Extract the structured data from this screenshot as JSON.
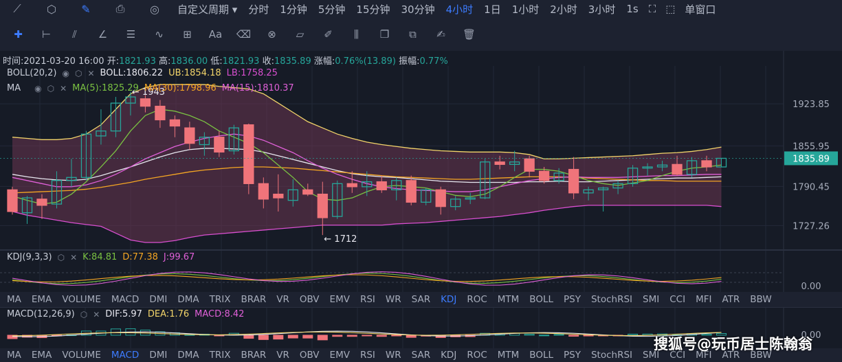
{
  "toolbar": {
    "icons": [
      "line-chart-icon",
      "settings-hex-icon",
      "pen-icon",
      "printer-icon",
      "compass-icon"
    ],
    "periods": [
      "自定义周期",
      "分时",
      "1分钟",
      "5分钟",
      "15分钟",
      "30分钟",
      "4小时",
      "1日",
      "1小时",
      "2小时",
      "3小时",
      "1s"
    ],
    "active_period": "4小时",
    "single_window": "单窗口"
  },
  "drawing_tools": [
    "crosshair-icon",
    "horizontal-line-icon",
    "parallel-lines-icon",
    "angle-icon",
    "fib-lines-icon",
    "wave-icon",
    "add-box-icon",
    "text-icon",
    "eraser-icon",
    "magnet-icon",
    "ruler-icon",
    "brush-icon",
    "candles-icon",
    "copy-icon",
    "duplicate-icon",
    "note-icon",
    "trash-icon"
  ],
  "info": {
    "time_label": "时间:",
    "time": "2021-03-20 16:00",
    "open_label": "开:",
    "open": "1821.93",
    "high_label": "高:",
    "high": "1836.00",
    "low_label": "低:",
    "low": "1821.93",
    "close_label": "收:",
    "close": "1835.89",
    "change_label": "涨幅:",
    "change": "0.76%(13.89)",
    "amp_label": "振幅:",
    "amp": "0.77%"
  },
  "boll_legend": {
    "name": "BOLL(20,2)",
    "boll": "BOLL:1806.22",
    "ub": "UB:1854.18",
    "lb": "LB:1758.25"
  },
  "ma_legend": {
    "name": "MA",
    "ma5": "MA(5):1825.29",
    "ma30": "MA(30):1798.96",
    "ma15": "MA(15):1810.37"
  },
  "kdj_legend": {
    "name": "KDJ(9,3,3)",
    "k": "K:84.81",
    "d": "D:77.38",
    "j": "J:99.67"
  },
  "macd_legend": {
    "name": "MACD(12,26,9)",
    "dif": "DIF:5.97",
    "dea": "DEA:1.76",
    "macd": "MACD:8.42"
  },
  "indicator_tabs": [
    "MA",
    "EMA",
    "VOLUME",
    "MACD",
    "DMI",
    "DMA",
    "TRIX",
    "BRAR",
    "VR",
    "OBV",
    "EMV",
    "RSI",
    "WR",
    "SAR",
    "KDJ",
    "ROC",
    "MTM",
    "BOLL",
    "PSY",
    "StochRSI",
    "SMI",
    "CCI",
    "MFI",
    "ATR",
    "BBW"
  ],
  "indicator_tabs_active_1": "KDJ",
  "indicator_tabs_active_2": "MACD",
  "watermark": "搜狐号@玩币居士陈翰翁",
  "colors": {
    "up": "#26a69a",
    "down": "#f0747a",
    "ub": "#f3d56a",
    "lb": "#d94fd0",
    "mid": "#e8e8f0",
    "ma5": "#7ac142",
    "ma30": "#f5a623",
    "ma15": "#e060d8",
    "accent": "#3d7cff"
  },
  "chart_data": {
    "type": "candlestick",
    "price_axis_ticks": [
      1923.85,
      1855.95,
      1790.45,
      1727.26
    ],
    "current_price": "1835.89",
    "annotations": [
      {
        "text": "← 1943"
      },
      {
        "text": "← 1712"
      }
    ],
    "ylim": [
      1690,
      1985
    ],
    "candles": [
      {
        "o": 1785,
        "h": 1790,
        "l": 1745,
        "c": 1750
      },
      {
        "o": 1748,
        "h": 1775,
        "l": 1730,
        "c": 1772
      },
      {
        "o": 1770,
        "h": 1778,
        "l": 1738,
        "c": 1760
      },
      {
        "o": 1762,
        "h": 1815,
        "l": 1755,
        "c": 1800
      },
      {
        "o": 1800,
        "h": 1835,
        "l": 1790,
        "c": 1805
      },
      {
        "o": 1805,
        "h": 1880,
        "l": 1800,
        "c": 1875
      },
      {
        "o": 1872,
        "h": 1915,
        "l": 1858,
        "c": 1880
      },
      {
        "o": 1880,
        "h": 1935,
        "l": 1870,
        "c": 1925
      },
      {
        "o": 1925,
        "h": 1943,
        "l": 1905,
        "c": 1935
      },
      {
        "o": 1932,
        "h": 1938,
        "l": 1910,
        "c": 1920
      },
      {
        "o": 1920,
        "h": 1930,
        "l": 1885,
        "c": 1898
      },
      {
        "o": 1898,
        "h": 1905,
        "l": 1870,
        "c": 1888
      },
      {
        "o": 1885,
        "h": 1895,
        "l": 1850,
        "c": 1860
      },
      {
        "o": 1858,
        "h": 1878,
        "l": 1840,
        "c": 1870
      },
      {
        "o": 1870,
        "h": 1880,
        "l": 1838,
        "c": 1846
      },
      {
        "o": 1848,
        "h": 1890,
        "l": 1842,
        "c": 1885
      },
      {
        "o": 1890,
        "h": 1892,
        "l": 1778,
        "c": 1795
      },
      {
        "o": 1795,
        "h": 1805,
        "l": 1755,
        "c": 1770
      },
      {
        "o": 1778,
        "h": 1810,
        "l": 1750,
        "c": 1772
      },
      {
        "o": 1768,
        "h": 1802,
        "l": 1758,
        "c": 1785
      },
      {
        "o": 1785,
        "h": 1795,
        "l": 1775,
        "c": 1778
      },
      {
        "o": 1778,
        "h": 1798,
        "l": 1712,
        "c": 1740
      },
      {
        "o": 1742,
        "h": 1800,
        "l": 1738,
        "c": 1795
      },
      {
        "o": 1795,
        "h": 1815,
        "l": 1780,
        "c": 1790
      },
      {
        "o": 1790,
        "h": 1815,
        "l": 1775,
        "c": 1798
      },
      {
        "o": 1798,
        "h": 1808,
        "l": 1780,
        "c": 1785
      },
      {
        "o": 1785,
        "h": 1805,
        "l": 1768,
        "c": 1800
      },
      {
        "o": 1800,
        "h": 1808,
        "l": 1760,
        "c": 1765
      },
      {
        "o": 1765,
        "h": 1788,
        "l": 1760,
        "c": 1785
      },
      {
        "o": 1785,
        "h": 1790,
        "l": 1745,
        "c": 1758
      },
      {
        "o": 1758,
        "h": 1775,
        "l": 1752,
        "c": 1770
      },
      {
        "o": 1770,
        "h": 1780,
        "l": 1762,
        "c": 1772
      },
      {
        "o": 1772,
        "h": 1835,
        "l": 1770,
        "c": 1830
      },
      {
        "o": 1830,
        "h": 1840,
        "l": 1818,
        "c": 1826
      },
      {
        "o": 1826,
        "h": 1848,
        "l": 1815,
        "c": 1830
      },
      {
        "o": 1835,
        "h": 1840,
        "l": 1805,
        "c": 1815
      },
      {
        "o": 1815,
        "h": 1822,
        "l": 1795,
        "c": 1800
      },
      {
        "o": 1800,
        "h": 1820,
        "l": 1795,
        "c": 1812
      },
      {
        "o": 1818,
        "h": 1838,
        "l": 1770,
        "c": 1780
      },
      {
        "o": 1780,
        "h": 1790,
        "l": 1768,
        "c": 1785
      },
      {
        "o": 1785,
        "h": 1790,
        "l": 1750,
        "c": 1788
      },
      {
        "o": 1788,
        "h": 1800,
        "l": 1778,
        "c": 1795
      },
      {
        "o": 1795,
        "h": 1825,
        "l": 1790,
        "c": 1820
      },
      {
        "o": 1820,
        "h": 1828,
        "l": 1808,
        "c": 1822
      },
      {
        "o": 1822,
        "h": 1832,
        "l": 1815,
        "c": 1825
      },
      {
        "o": 1826,
        "h": 1840,
        "l": 1808,
        "c": 1810
      },
      {
        "o": 1810,
        "h": 1838,
        "l": 1805,
        "c": 1832
      },
      {
        "o": 1832,
        "h": 1840,
        "l": 1815,
        "c": 1822
      },
      {
        "o": 1821.93,
        "h": 1836,
        "l": 1821.93,
        "c": 1835.89
      }
    ],
    "boll_ub": [
      1870,
      1868,
      1866,
      1866,
      1868,
      1875,
      1890,
      1915,
      1940,
      1950,
      1955,
      1955,
      1955,
      1955,
      1952,
      1950,
      1948,
      1940,
      1925,
      1910,
      1895,
      1885,
      1875,
      1868,
      1862,
      1858,
      1855,
      1852,
      1850,
      1848,
      1847,
      1846,
      1846,
      1846,
      1845,
      1842,
      1835,
      1835,
      1836,
      1837,
      1838,
      1839,
      1840,
      1842,
      1844,
      1845,
      1847,
      1850,
      1854
    ],
    "boll_mid": [
      1810,
      1806,
      1803,
      1801,
      1800,
      1802,
      1808,
      1815,
      1822,
      1830,
      1838,
      1845,
      1850,
      1852,
      1852,
      1851,
      1850,
      1846,
      1840,
      1834,
      1828,
      1822,
      1816,
      1811,
      1808,
      1806,
      1805,
      1803,
      1801,
      1799,
      1798,
      1797,
      1797,
      1797,
      1797,
      1798,
      1798,
      1799,
      1798,
      1798,
      1799,
      1800,
      1801,
      1802,
      1803,
      1804,
      1804,
      1805,
      1806
    ],
    "boll_lb": [
      1750,
      1744,
      1740,
      1736,
      1732,
      1729,
      1726,
      1715,
      1704,
      1700,
      1700,
      1703,
      1708,
      1712,
      1714,
      1716,
      1718,
      1720,
      1722,
      1724,
      1726,
      1728,
      1728,
      1728,
      1728,
      1728,
      1730,
      1731,
      1732,
      1734,
      1736,
      1738,
      1740,
      1742,
      1745,
      1748,
      1752,
      1755,
      1758,
      1760,
      1760,
      1760,
      1760,
      1760,
      1760,
      1760,
      1760,
      1760,
      1758
    ],
    "ma5": [
      1775,
      1768,
      1762,
      1765,
      1778,
      1798,
      1822,
      1848,
      1880,
      1905,
      1915,
      1912,
      1905,
      1895,
      1880,
      1870,
      1860,
      1845,
      1825,
      1805,
      1782,
      1770,
      1768,
      1772,
      1782,
      1790,
      1792,
      1790,
      1788,
      1782,
      1776,
      1774,
      1778,
      1790,
      1805,
      1818,
      1818,
      1815,
      1808,
      1800,
      1795,
      1792,
      1796,
      1800,
      1808,
      1815,
      1820,
      1822,
      1825
    ],
    "ma15": [
      1805,
      1800,
      1795,
      1790,
      1790,
      1793,
      1800,
      1810,
      1822,
      1835,
      1845,
      1855,
      1862,
      1868,
      1872,
      1875,
      1872,
      1865,
      1855,
      1845,
      1832,
      1820,
      1810,
      1802,
      1795,
      1790,
      1787,
      1785,
      1784,
      1783,
      1782,
      1782,
      1785,
      1790,
      1795,
      1800,
      1803,
      1805,
      1806,
      1805,
      1805,
      1805,
      1806,
      1807,
      1808,
      1808,
      1809,
      1810,
      1810
    ],
    "ma30": [
      1780,
      1781,
      1782,
      1783,
      1784,
      1786,
      1789,
      1793,
      1797,
      1802,
      1806,
      1810,
      1814,
      1817,
      1819,
      1821,
      1822,
      1822,
      1821,
      1820,
      1818,
      1816,
      1814,
      1812,
      1810,
      1808,
      1806,
      1805,
      1804,
      1803,
      1802,
      1802,
      1803,
      1804,
      1805,
      1806,
      1806,
      1806,
      1805,
      1804,
      1803,
      1802,
      1801,
      1800,
      1800,
      1799,
      1799,
      1799,
      1799
    ],
    "kdj_axis_label": "0.00",
    "macd_axis_label": "0.00"
  }
}
